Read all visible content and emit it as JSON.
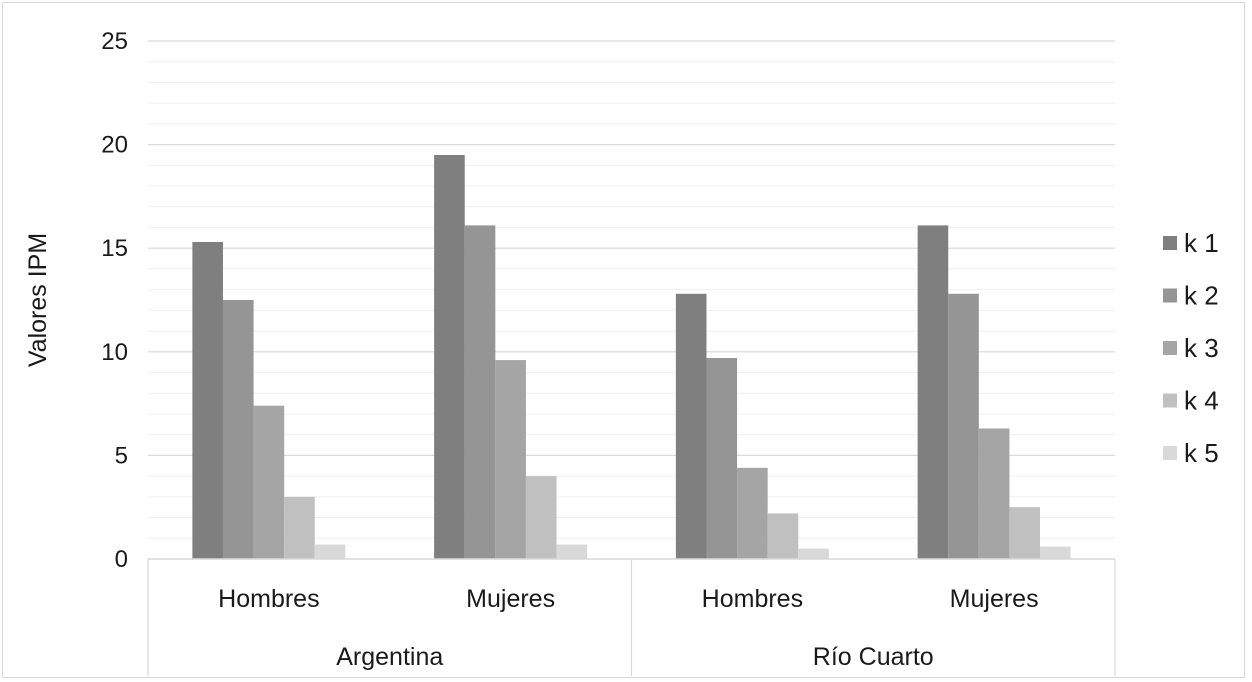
{
  "chart_data": {
    "type": "bar",
    "title": "",
    "ylabel": "Valores IPM",
    "xlabel": "",
    "ylim": [
      0,
      25
    ],
    "yticks": [
      "0",
      "5",
      "10",
      "15",
      "20",
      "25"
    ],
    "grid": true,
    "legend_position": "right",
    "groups": [
      {
        "label": "Argentina",
        "categories": [
          "Hombres",
          "Mujeres"
        ]
      },
      {
        "label": "Río Cuarto",
        "categories": [
          "Hombres",
          "Mujeres"
        ]
      }
    ],
    "categories": [
      "Hombres",
      "Mujeres",
      "Hombres",
      "Mujeres"
    ],
    "series": [
      {
        "name": "k 1",
        "color": "#7f7f7f",
        "values": [
          15.3,
          19.5,
          12.8,
          16.1
        ]
      },
      {
        "name": "k 2",
        "color": "#959595",
        "values": [
          12.5,
          16.1,
          9.7,
          12.8
        ]
      },
      {
        "name": "k 3",
        "color": "#a5a5a5",
        "values": [
          7.4,
          9.6,
          4.4,
          6.3
        ]
      },
      {
        "name": "k 4",
        "color": "#c0c0c0",
        "values": [
          3.0,
          4.0,
          2.2,
          2.5
        ]
      },
      {
        "name": "k 5",
        "color": "#d9d9d9",
        "values": [
          0.7,
          0.7,
          0.5,
          0.6
        ]
      }
    ]
  }
}
